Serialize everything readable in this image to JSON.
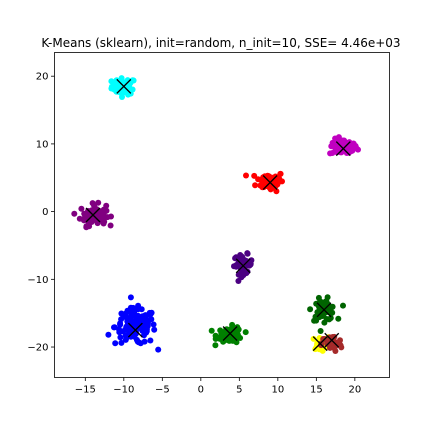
{
  "chart_data": {
    "type": "scatter",
    "title": "K-Means (sklearn), init=random, n_init=10, SSE= 4.46e+03",
    "xlabel": "",
    "ylabel": "",
    "xlim": [
      -19,
      24.5
    ],
    "ylim": [
      -24.5,
      23.5
    ],
    "xticks": [
      -15,
      -10,
      -5,
      0,
      5,
      10,
      15,
      20
    ],
    "yticks": [
      -20,
      -10,
      0,
      10,
      20
    ],
    "xtick_labels": [
      "−15",
      "−10",
      "−5",
      "0",
      "5",
      "10",
      "15",
      "20"
    ],
    "ytick_labels": [
      "−20",
      "−10",
      "0",
      "10",
      "20"
    ],
    "grid": false,
    "clusters": [
      {
        "name": "cluster-cyan",
        "color": "#00ffff",
        "center": [
          -10,
          18.5
        ],
        "spread": [
          1.3,
          1.0
        ],
        "n": 60
      },
      {
        "name": "cluster-magenta",
        "color": "#c000c0",
        "center": [
          18.5,
          9.5
        ],
        "spread": [
          1.5,
          1.0
        ],
        "n": 60
      },
      {
        "name": "cluster-red",
        "color": "#ff0000",
        "center": [
          9,
          4.5
        ],
        "spread": [
          1.5,
          1.2
        ],
        "n": 60
      },
      {
        "name": "cluster-purple",
        "color": "#800080",
        "center": [
          -14,
          -0.5
        ],
        "spread": [
          1.4,
          1.3
        ],
        "n": 70
      },
      {
        "name": "cluster-indigo",
        "color": "#4b0082",
        "center": [
          5.5,
          -7.8
        ],
        "spread": [
          1.0,
          1.2
        ],
        "n": 50
      },
      {
        "name": "cluster-blue",
        "color": "#0000ff",
        "center": [
          -8.5,
          -17
        ],
        "spread": [
          2.2,
          2.2
        ],
        "n": 130
      },
      {
        "name": "cluster-green",
        "color": "#008000",
        "center": [
          3.8,
          -18.2
        ],
        "spread": [
          1.4,
          1.0
        ],
        "n": 60
      },
      {
        "name": "cluster-darkgreen",
        "color": "#006400",
        "center": [
          16,
          -14.5
        ],
        "spread": [
          1.3,
          1.3
        ],
        "n": 60
      },
      {
        "name": "cluster-yellow",
        "color": "#ffff00",
        "center": [
          15.5,
          -19.5
        ],
        "spread": [
          0.9,
          0.8
        ],
        "n": 25
      },
      {
        "name": "cluster-brown",
        "color": "#a52a2a",
        "center": [
          17,
          -19.5
        ],
        "spread": [
          1.1,
          1.0
        ],
        "n": 45
      }
    ],
    "centroids": [
      {
        "x": -10,
        "y": 18.5
      },
      {
        "x": 18.5,
        "y": 9.3
      },
      {
        "x": 9,
        "y": 4.3
      },
      {
        "x": -14,
        "y": -0.5
      },
      {
        "x": 5.5,
        "y": -8
      },
      {
        "x": -8.5,
        "y": -17.5
      },
      {
        "x": 3.8,
        "y": -18
      },
      {
        "x": 16,
        "y": -14.5
      },
      {
        "x": 15.5,
        "y": -19.5
      },
      {
        "x": 17,
        "y": -19
      }
    ],
    "centroid_marker": "x",
    "centroid_color": "#000000"
  }
}
